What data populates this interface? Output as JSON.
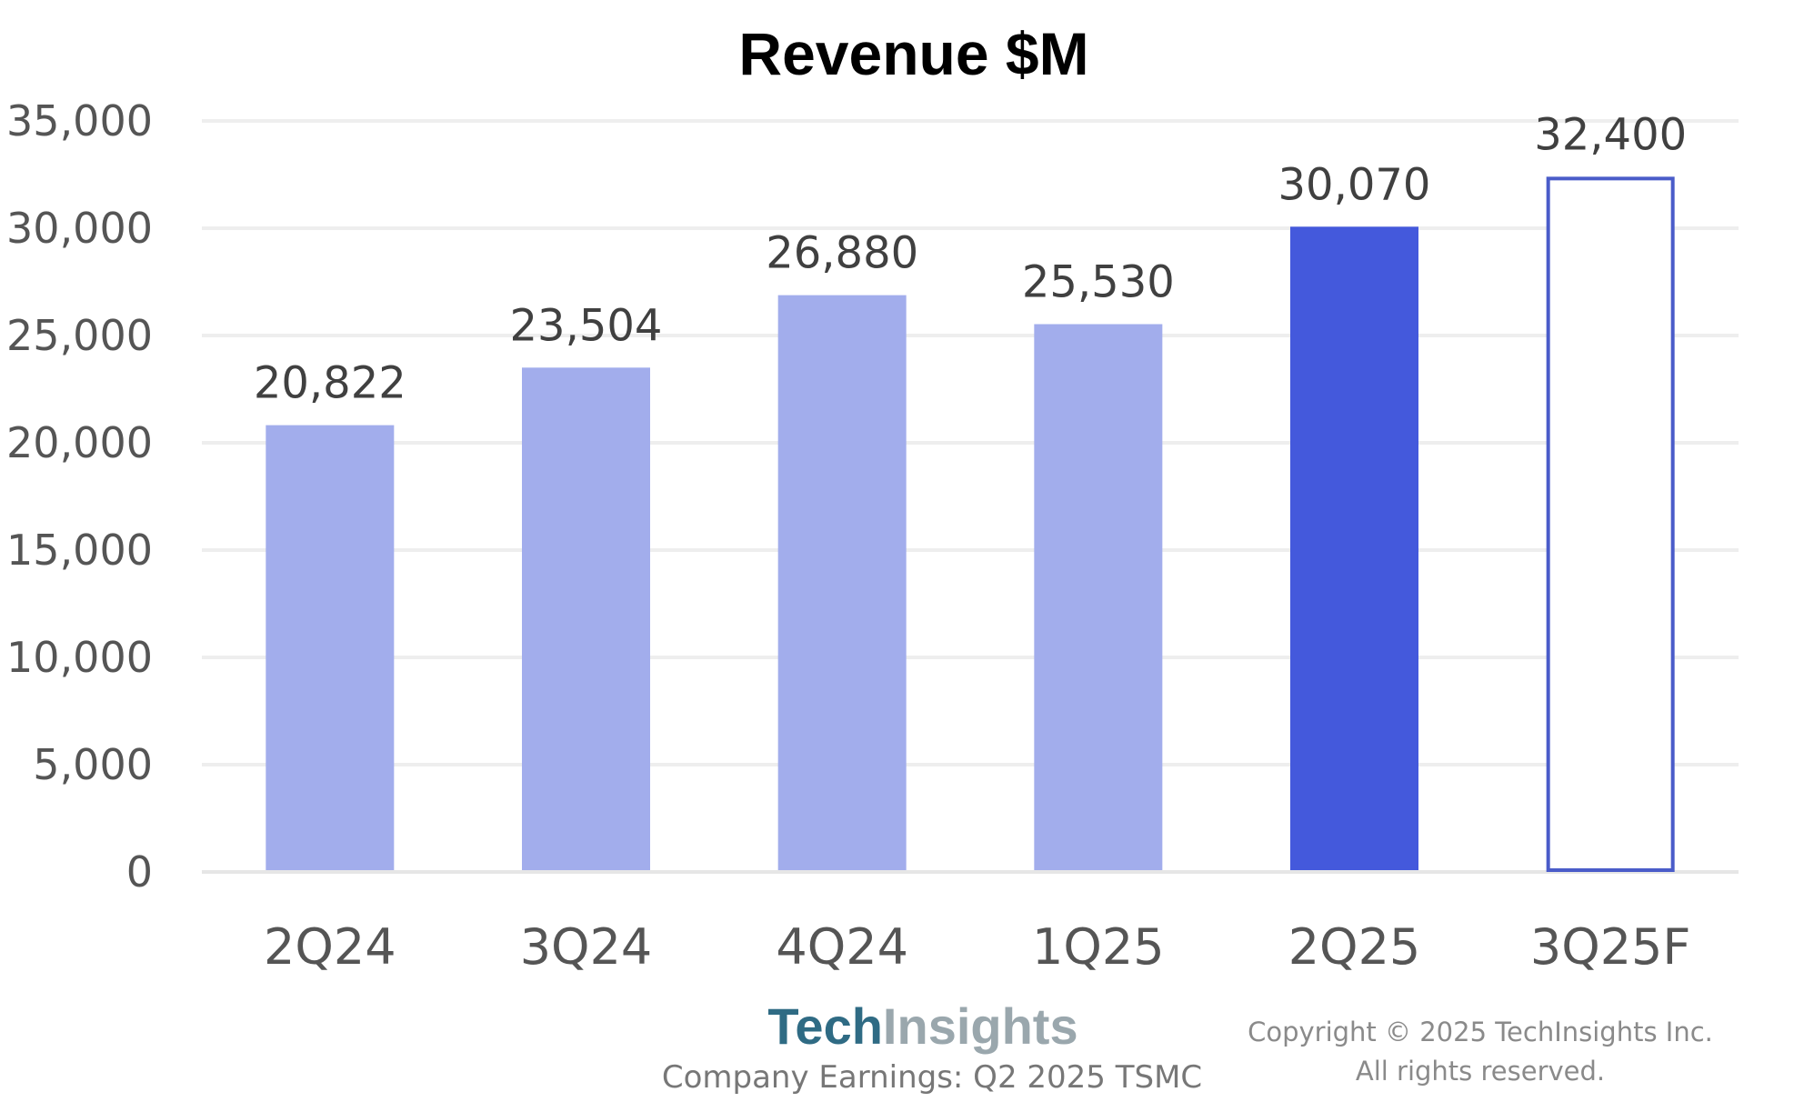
{
  "chart_data": {
    "type": "bar",
    "title": "Revenue $M",
    "categories": [
      "2Q24",
      "3Q24",
      "4Q24",
      "1Q25",
      "2Q25",
      "3Q25F"
    ],
    "values": [
      20822,
      23504,
      26880,
      25530,
      30070,
      32400
    ],
    "value_labels": [
      "20,822",
      "23,504",
      "26,880",
      "25,530",
      "30,070",
      "32,400"
    ],
    "bar_styles": [
      "light",
      "light",
      "light",
      "light",
      "dark",
      "outline"
    ],
    "ylim": [
      0,
      35000
    ],
    "yticks": [
      0,
      5000,
      10000,
      15000,
      20000,
      25000,
      30000,
      35000
    ],
    "ytick_labels": [
      "0",
      "5,000",
      "10,000",
      "15,000",
      "20,000",
      "25,000",
      "30,000",
      "35,000"
    ],
    "xlabel": "",
    "ylabel": "",
    "grid": true,
    "colors": {
      "light": "#a2adec",
      "dark": "#4459dc",
      "outline": "#4a5cc9"
    }
  },
  "footer": {
    "logo_part1": "Tech",
    "logo_part2": "Insights",
    "source": "Company Earnings: Q2 2025 TSMC",
    "copyright_line1": "Copyright © 2025 TechInsights Inc.",
    "copyright_line2": "All rights reserved."
  }
}
